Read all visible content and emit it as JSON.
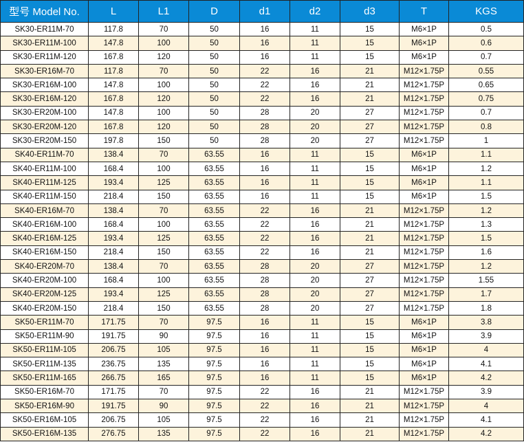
{
  "table": {
    "headers": [
      "型号 Model No.",
      "L",
      "L1",
      "D",
      "d1",
      "d2",
      "d3",
      "T",
      "KGS"
    ],
    "rows": [
      [
        "SK30-ER11M-70",
        "117.8",
        "70",
        "50",
        "16",
        "11",
        "15",
        "M6×1P",
        "0.5"
      ],
      [
        "SK30-ER11M-100",
        "147.8",
        "100",
        "50",
        "16",
        "11",
        "15",
        "M6×1P",
        "0.6"
      ],
      [
        "SK30-ER11M-120",
        "167.8",
        "120",
        "50",
        "16",
        "11",
        "15",
        "M6×1P",
        "0.7"
      ],
      [
        "SK30-ER16M-70",
        "117.8",
        "70",
        "50",
        "22",
        "16",
        "21",
        "M12×1.75P",
        "0.55"
      ],
      [
        "SK30-ER16M-100",
        "147.8",
        "100",
        "50",
        "22",
        "16",
        "21",
        "M12×1.75P",
        "0.65"
      ],
      [
        "SK30-ER16M-120",
        "167.8",
        "120",
        "50",
        "22",
        "16",
        "21",
        "M12×1.75P",
        "0.75"
      ],
      [
        "SK30-ER20M-100",
        "147.8",
        "100",
        "50",
        "28",
        "20",
        "27",
        "M12×1.75P",
        "0.7"
      ],
      [
        "SK30-ER20M-120",
        "167.8",
        "120",
        "50",
        "28",
        "20",
        "27",
        "M12×1.75P",
        "0.8"
      ],
      [
        "SK30-ER20M-150",
        "197.8",
        "150",
        "50",
        "28",
        "20",
        "27",
        "M12×1.75P",
        "1"
      ],
      [
        "SK40-ER11M-70",
        "138.4",
        "70",
        "63.55",
        "16",
        "11",
        "15",
        "M6×1P",
        "1.1"
      ],
      [
        "SK40-ER11M-100",
        "168.4",
        "100",
        "63.55",
        "16",
        "11",
        "15",
        "M6×1P",
        "1.2"
      ],
      [
        "SK40-ER11M-125",
        "193.4",
        "125",
        "63.55",
        "16",
        "11",
        "15",
        "M6×1P",
        "1.1"
      ],
      [
        "SK40-ER11M-150",
        "218.4",
        "150",
        "63.55",
        "16",
        "11",
        "15",
        "M6×1P",
        "1.5"
      ],
      [
        "SK40-ER16M-70",
        "138.4",
        "70",
        "63.55",
        "22",
        "16",
        "21",
        "M12×1.75P",
        "1.2"
      ],
      [
        "SK40-ER16M-100",
        "168.4",
        "100",
        "63.55",
        "22",
        "16",
        "21",
        "M12×1.75P",
        "1.3"
      ],
      [
        "SK40-ER16M-125",
        "193.4",
        "125",
        "63.55",
        "22",
        "16",
        "21",
        "M12×1.75P",
        "1.5"
      ],
      [
        "SK40-ER16M-150",
        "218.4",
        "150",
        "63.55",
        "22",
        "16",
        "21",
        "M12×1.75P",
        "1.6"
      ],
      [
        "SK40-ER20M-70",
        "138.4",
        "70",
        "63.55",
        "28",
        "20",
        "27",
        "M12×1.75P",
        "1.2"
      ],
      [
        "SK40-ER20M-100",
        "168.4",
        "100",
        "63.55",
        "28",
        "20",
        "27",
        "M12×1.75P",
        "1.55"
      ],
      [
        "SK40-ER20M-125",
        "193.4",
        "125",
        "63.55",
        "28",
        "20",
        "27",
        "M12×1.75P",
        "1.7"
      ],
      [
        "SK40-ER20M-150",
        "218.4",
        "150",
        "63.55",
        "28",
        "20",
        "27",
        "M12×1.75P",
        "1.8"
      ],
      [
        "SK50-ER11M-70",
        "171.75",
        "70",
        "97.5",
        "16",
        "11",
        "15",
        "M6×1P",
        "3.8"
      ],
      [
        "SK50-ER11M-90",
        "191.75",
        "90",
        "97.5",
        "16",
        "11",
        "15",
        "M6×1P",
        "3.9"
      ],
      [
        "SK50-ER11M-105",
        "206.75",
        "105",
        "97.5",
        "16",
        "11",
        "15",
        "M6×1P",
        "4"
      ],
      [
        "SK50-ER11M-135",
        "236.75",
        "135",
        "97.5",
        "16",
        "11",
        "15",
        "M6×1P",
        "4.1"
      ],
      [
        "SK50-ER11M-165",
        "266.75",
        "165",
        "97.5",
        "16",
        "11",
        "15",
        "M6×1P",
        "4.2"
      ],
      [
        "SK50-ER16M-70",
        "171.75",
        "70",
        "97.5",
        "22",
        "16",
        "21",
        "M12×1.75P",
        "3.9"
      ],
      [
        "SK50-ER16M-90",
        "191.75",
        "90",
        "97.5",
        "22",
        "16",
        "21",
        "M12×1.75P",
        "4"
      ],
      [
        "SK50-ER16M-105",
        "206.75",
        "105",
        "97.5",
        "22",
        "16",
        "21",
        "M12×1.75P",
        "4.1"
      ],
      [
        "SK50-ER16M-135",
        "276.75",
        "135",
        "97.5",
        "22",
        "16",
        "21",
        "M12×1.75P",
        "4.2"
      ]
    ]
  },
  "colors": {
    "header": "#0a8ad6",
    "alt_row": "#fdf3dc"
  }
}
